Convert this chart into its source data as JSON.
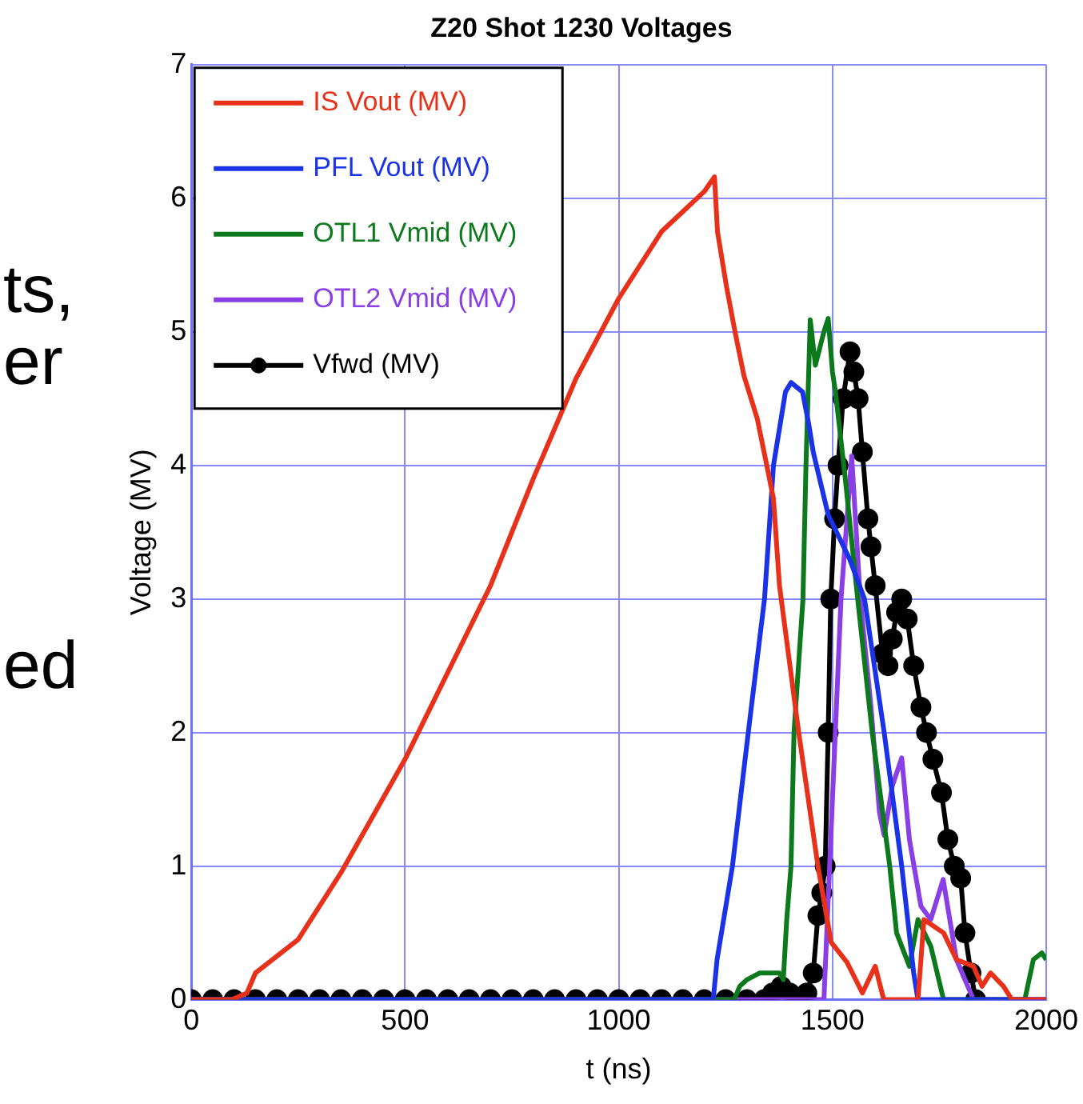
{
  "chart_data": {
    "type": "line",
    "title": "Z20 Shot 1230 Voltages",
    "xlabel": "t (ns)",
    "ylabel": "Voltage (MV)",
    "annotations": [
      "ts,",
      "er",
      "ed"
    ],
    "xlim": [
      0,
      2000
    ],
    "xticks": [
      0,
      500,
      1000,
      1500,
      2000
    ],
    "ylim": [
      0,
      7
    ],
    "yticks": [
      0,
      1,
      2,
      3,
      4,
      5,
      6,
      7
    ],
    "grid": true,
    "legend": "top left",
    "series": [
      {
        "name": "IS Vout (MV)",
        "color": "#e8311a",
        "marker": "none",
        "x": [
          0,
          95,
          130,
          150,
          250,
          350,
          500,
          600,
          700,
          800,
          900,
          1000,
          1100,
          1200,
          1224,
          1231,
          1252,
          1272,
          1293,
          1324,
          1345,
          1362,
          1376,
          1421,
          1466,
          1497,
          1534,
          1570,
          1600,
          1620,
          1700,
          1714,
          1760,
          1790,
          1830,
          1850,
          1870,
          1900,
          1920,
          2000
        ],
        "values": [
          0,
          0,
          0.05,
          0.2,
          0.45,
          0.95,
          1.8,
          2.45,
          3.1,
          3.9,
          4.65,
          5.25,
          5.75,
          6.05,
          6.16,
          5.75,
          5.34,
          5.0,
          4.67,
          4.35,
          4.02,
          3.75,
          3.1,
          2.0,
          1.0,
          0.43,
          0.28,
          0.05,
          0.25,
          0,
          0,
          0.6,
          0.5,
          0.3,
          0.25,
          0.1,
          0.2,
          0.1,
          0,
          0
        ]
      },
      {
        "name": "PFL Vout (MV)",
        "color": "#1a33e6",
        "marker": "none",
        "x": [
          0,
          1221,
          1230,
          1266,
          1303,
          1341,
          1362,
          1390,
          1403,
          1430,
          1445,
          1455,
          1490,
          1540,
          1575,
          1621,
          1662,
          1690,
          1700,
          2000
        ],
        "values": [
          0,
          0,
          0.3,
          1.0,
          2.0,
          3.0,
          4.0,
          4.55,
          4.62,
          4.55,
          4.3,
          4.1,
          3.63,
          3.3,
          3.0,
          2.0,
          1.0,
          0.2,
          0,
          0
        ]
      },
      {
        "name": "OTL1 Vmid (MV)",
        "color": "#0c7a1c",
        "marker": "none",
        "x": [
          0,
          1270,
          1283,
          1300,
          1330,
          1376,
          1385,
          1393,
          1403,
          1410,
          1431,
          1438,
          1448,
          1460,
          1480,
          1490,
          1500,
          1507,
          1530,
          1559,
          1593,
          1634,
          1650,
          1680,
          1700,
          1730,
          1760,
          1950,
          1970,
          1990,
          2000
        ],
        "values": [
          0,
          0,
          0.1,
          0.15,
          0.2,
          0.2,
          0.15,
          0.6,
          1.0,
          2.0,
          3.0,
          4.0,
          5.09,
          4.75,
          5.0,
          5.1,
          4.7,
          4.55,
          3.9,
          3.0,
          2.0,
          1.0,
          0.5,
          0.25,
          0.6,
          0.4,
          0,
          0,
          0.3,
          0.35,
          0.3
        ]
      },
      {
        "name": "OTL2 Vmid (MV)",
        "color": "#8a3ee6",
        "marker": "none",
        "x": [
          0,
          1480,
          1500,
          1520,
          1545,
          1565,
          1590,
          1610,
          1621,
          1640,
          1662,
          1680,
          1707,
          1730,
          1759,
          1790,
          1830,
          2000
        ],
        "values": [
          0,
          0,
          1.5,
          3.0,
          4.07,
          3.0,
          2.2,
          1.4,
          1.23,
          1.6,
          1.81,
          1.2,
          0.7,
          0.6,
          0.9,
          0.3,
          0,
          0
        ]
      },
      {
        "name": "Vfwd (MV)",
        "color": "#000000",
        "marker": "circle",
        "x": [
          0,
          50,
          100,
          150,
          200,
          250,
          300,
          350,
          400,
          450,
          500,
          550,
          600,
          650,
          700,
          750,
          800,
          850,
          900,
          950,
          1000,
          1050,
          1100,
          1150,
          1200,
          1250,
          1300,
          1340,
          1360,
          1380,
          1400,
          1420,
          1440,
          1455,
          1466,
          1475,
          1483,
          1490,
          1496,
          1505,
          1513,
          1525,
          1541,
          1550,
          1560,
          1570,
          1583,
          1590,
          1600,
          1617,
          1630,
          1640,
          1650,
          1662,
          1675,
          1690,
          1707,
          1720,
          1735,
          1755,
          1770,
          1785,
          1800,
          1810,
          1824,
          1835
        ],
        "values": [
          0,
          0,
          0,
          0,
          0,
          0,
          0,
          0,
          0,
          0,
          0,
          0,
          0,
          0,
          0,
          0,
          0,
          0,
          0,
          0,
          0,
          0,
          0,
          0,
          0,
          0,
          0,
          0,
          0.05,
          0.1,
          0.05,
          0,
          0.05,
          0.2,
          0.63,
          0.8,
          1.0,
          2.0,
          3.0,
          3.6,
          4.0,
          4.5,
          4.85,
          4.7,
          4.5,
          4.1,
          3.6,
          3.39,
          3.1,
          2.59,
          2.5,
          2.7,
          2.9,
          3.0,
          2.85,
          2.5,
          2.19,
          2.0,
          1.8,
          1.55,
          1.2,
          1.0,
          0.91,
          0.5,
          0.2,
          0
        ]
      }
    ]
  }
}
